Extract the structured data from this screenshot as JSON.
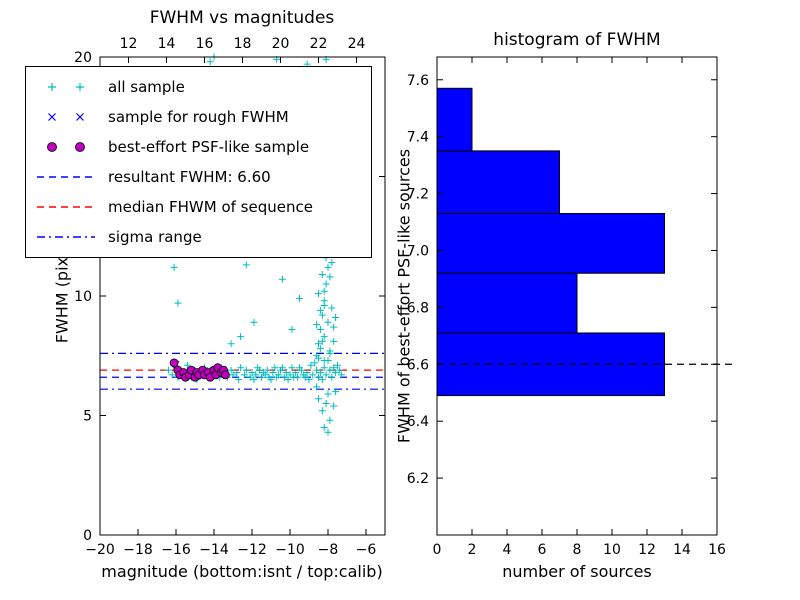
{
  "figure": {
    "background": "#ffffff"
  },
  "chart_data": [
    {
      "type": "scatter",
      "title": "FWHM vs magnitudes",
      "xlabel": "magnitude (bottom:isnt / top:calib)",
      "ylabel": "FWHM (pix)",
      "xlim": [
        -20,
        -5
      ],
      "ylim": [
        0,
        20
      ],
      "x_ticks_bottom": [
        -20,
        -18,
        -16,
        -14,
        -12,
        -10,
        -8,
        -6
      ],
      "x_ticks_top_labels": [
        12,
        14,
        16,
        18,
        20,
        22,
        24
      ],
      "top_axis_calib_offset": 30.5,
      "y_ticks": [
        0,
        5,
        10,
        15,
        20
      ],
      "grid": false,
      "legend_position": "upper-left-outside",
      "series": [
        {
          "name": "all sample",
          "marker": "plus",
          "color": "#00bcbc",
          "points": [
            [
              -16.4,
              6.9
            ],
            [
              -16.2,
              6.7
            ],
            [
              -16.0,
              7.0
            ],
            [
              -15.9,
              6.6
            ],
            [
              -15.7,
              6.8
            ],
            [
              -15.5,
              6.7
            ],
            [
              -15.4,
              7.1
            ],
            [
              -15.2,
              6.6
            ],
            [
              -15.0,
              6.9
            ],
            [
              -14.9,
              6.5
            ],
            [
              -14.8,
              6.8
            ],
            [
              -14.6,
              6.7
            ],
            [
              -14.5,
              7.0
            ],
            [
              -14.3,
              6.6
            ],
            [
              -14.2,
              6.9
            ],
            [
              -14.0,
              6.7
            ],
            [
              -13.9,
              6.8
            ],
            [
              -13.7,
              6.6
            ],
            [
              -13.6,
              7.0
            ],
            [
              -13.4,
              6.8
            ],
            [
              -13.3,
              6.6
            ],
            [
              -13.1,
              6.9
            ],
            [
              -13.0,
              6.7
            ],
            [
              -12.8,
              6.8
            ],
            [
              -12.7,
              6.5
            ],
            [
              -12.6,
              7.0
            ],
            [
              -12.4,
              6.7
            ],
            [
              -12.3,
              6.9
            ],
            [
              -12.1,
              6.6
            ],
            [
              -12.0,
              6.8
            ],
            [
              -11.8,
              6.7
            ],
            [
              -11.7,
              7.0
            ],
            [
              -11.5,
              6.6
            ],
            [
              -11.4,
              6.8
            ],
            [
              -11.2,
              6.9
            ],
            [
              -11.1,
              6.6
            ],
            [
              -10.9,
              6.8
            ],
            [
              -10.8,
              7.0
            ],
            [
              -10.6,
              6.7
            ],
            [
              -10.5,
              6.9
            ],
            [
              -10.3,
              6.6
            ],
            [
              -10.2,
              6.8
            ],
            [
              -10.0,
              6.7
            ],
            [
              -9.9,
              7.0
            ],
            [
              -9.7,
              6.8
            ],
            [
              -9.6,
              6.6
            ],
            [
              -9.4,
              6.9
            ],
            [
              -9.3,
              6.7
            ],
            [
              -9.1,
              6.8
            ],
            [
              -9.0,
              6.5
            ],
            [
              -8.9,
              7.1
            ],
            [
              -8.8,
              6.7
            ],
            [
              -8.6,
              6.9
            ],
            [
              -8.5,
              6.6
            ],
            [
              -8.4,
              6.8
            ],
            [
              -8.2,
              7.0
            ],
            [
              -8.1,
              6.7
            ],
            [
              -7.9,
              6.9
            ],
            [
              -7.8,
              6.6
            ],
            [
              -7.6,
              6.8
            ],
            [
              -7.5,
              7.1
            ],
            [
              -7.3,
              6.7
            ],
            [
              -11.9,
              6.5
            ],
            [
              -11.6,
              6.9
            ],
            [
              -11.3,
              6.7
            ],
            [
              -11.0,
              6.5
            ],
            [
              -10.7,
              6.6
            ],
            [
              -10.4,
              7.0
            ],
            [
              -10.1,
              6.5
            ],
            [
              -9.8,
              6.6
            ],
            [
              -9.5,
              7.0
            ],
            [
              -9.2,
              6.6
            ],
            [
              -8.7,
              7.2
            ],
            [
              -8.3,
              6.5
            ],
            [
              -8.0,
              7.3
            ],
            [
              -7.7,
              7.0
            ],
            [
              -7.4,
              6.9
            ],
            [
              -8.6,
              7.5
            ],
            [
              -8.5,
              8.0
            ],
            [
              -8.4,
              8.6
            ],
            [
              -8.3,
              9.2
            ],
            [
              -8.2,
              9.8
            ],
            [
              -8.1,
              10.5
            ],
            [
              -8.0,
              11.2
            ],
            [
              -7.9,
              12.0
            ],
            [
              -8.3,
              12.6
            ],
            [
              -8.1,
              13.3
            ],
            [
              -8.4,
              7.8
            ],
            [
              -8.2,
              8.3
            ],
            [
              -8.0,
              8.9
            ],
            [
              -7.8,
              9.5
            ],
            [
              -8.5,
              10.1
            ],
            [
              -8.3,
              10.9
            ],
            [
              -8.1,
              11.6
            ],
            [
              -7.9,
              7.6
            ],
            [
              -7.7,
              8.1
            ],
            [
              -8.6,
              8.8
            ],
            [
              -8.4,
              9.4
            ],
            [
              -8.2,
              10.2
            ],
            [
              -8.0,
              5.9
            ],
            [
              -8.1,
              5.5
            ],
            [
              -8.3,
              5.2
            ],
            [
              -7.9,
              4.8
            ],
            [
              -8.2,
              4.5
            ],
            [
              -8.0,
              4.3
            ],
            [
              -8.5,
              5.7
            ],
            [
              -8.6,
              6.2
            ],
            [
              -7.7,
              5.4
            ],
            [
              -7.6,
              6.0
            ],
            [
              -8.0,
              14.2
            ],
            [
              -8.2,
              15.0
            ],
            [
              -8.1,
              16.0
            ],
            [
              -8.3,
              17.1
            ],
            [
              -8.0,
              18.2
            ],
            [
              -8.2,
              19.3
            ],
            [
              -8.1,
              19.9
            ],
            [
              -7.9,
              10.8
            ],
            [
              -7.8,
              11.4
            ],
            [
              -8.6,
              11.9
            ],
            [
              -8.4,
              12.4
            ],
            [
              -8.2,
              7.3
            ],
            [
              -7.9,
              7.7
            ],
            [
              -8.5,
              7.4
            ],
            [
              -8.3,
              8.1
            ],
            [
              -7.7,
              8.7
            ],
            [
              -7.6,
              9.1
            ],
            [
              -8.2,
              9.6
            ],
            [
              -14.2,
              19.8
            ],
            [
              -14.0,
              20.0
            ],
            [
              -10.7,
              19.9
            ],
            [
              -9.1,
              19.7
            ],
            [
              -8.9,
              19.5
            ],
            [
              -16.1,
              11.2
            ],
            [
              -13.6,
              11.9
            ],
            [
              -12.3,
              11.3
            ],
            [
              -15.9,
              9.7
            ],
            [
              -12.6,
              8.3
            ],
            [
              -13.1,
              8.0
            ],
            [
              -11.9,
              8.9
            ],
            [
              -10.4,
              10.7
            ],
            [
              -9.5,
              9.9
            ],
            [
              -9.9,
              8.6
            ]
          ]
        },
        {
          "name": "sample for rough FWHM",
          "marker": "x",
          "color": "#0000ff",
          "points": [
            [
              -16.0,
              7.15
            ],
            [
              -15.7,
              6.75
            ],
            [
              -15.3,
              6.65
            ],
            [
              -14.9,
              6.75
            ],
            [
              -14.4,
              6.7
            ],
            [
              -13.8,
              6.85
            ],
            [
              -13.4,
              6.75
            ]
          ]
        },
        {
          "name": "best-effort PSF-like sample",
          "marker": "circle",
          "color": "#bf00bf",
          "points": [
            [
              -16.1,
              7.2
            ],
            [
              -15.9,
              6.9
            ],
            [
              -15.8,
              6.7
            ],
            [
              -15.6,
              6.8
            ],
            [
              -15.5,
              6.6
            ],
            [
              -15.3,
              6.7
            ],
            [
              -15.2,
              6.9
            ],
            [
              -15.0,
              6.6
            ],
            [
              -14.9,
              6.8
            ],
            [
              -14.8,
              6.7
            ],
            [
              -14.6,
              6.9
            ],
            [
              -14.5,
              6.7
            ],
            [
              -14.3,
              6.8
            ],
            [
              -14.2,
              6.6
            ],
            [
              -14.0,
              6.9
            ],
            [
              -13.9,
              6.7
            ],
            [
              -13.8,
              7.0
            ],
            [
              -13.6,
              6.8
            ],
            [
              -13.5,
              6.9
            ],
            [
              -13.4,
              6.7
            ]
          ]
        }
      ],
      "lines": [
        {
          "name": "sigma range high",
          "value": 7.6,
          "style": "dashdot",
          "color": "#0000ff"
        },
        {
          "name": "median FHWM of sequence",
          "value": 6.9,
          "style": "dashed",
          "color": "#ff0000"
        },
        {
          "name": "resultant FWHM",
          "value": 6.6,
          "style": "dashed",
          "color": "#0000ff"
        },
        {
          "name": "sigma range low",
          "value": 6.1,
          "style": "dashdot",
          "color": "#0000ff"
        }
      ],
      "legend": {
        "entries": [
          {
            "label": "all sample",
            "type": "marker",
            "marker": "plus",
            "color": "#00bcbc"
          },
          {
            "label": "sample for rough FWHM",
            "type": "marker",
            "marker": "x",
            "color": "#0000ff"
          },
          {
            "label": "best-effort PSF-like sample",
            "type": "marker",
            "marker": "circle",
            "color": "#bf00bf"
          },
          {
            "label": "resultant FWHM: 6.60",
            "type": "line",
            "style": "dashed",
            "color": "#0000ff"
          },
          {
            "label": "median FHWM of sequence",
            "type": "line",
            "style": "dashed",
            "color": "#ff0000"
          },
          {
            "label": "sigma range",
            "type": "line",
            "style": "dashdot",
            "color": "#0000ff"
          }
        ]
      }
    },
    {
      "type": "bar",
      "orientation": "horizontal",
      "title": "histogram of FWHM",
      "xlabel": "number of sources",
      "ylabel": "FWHM of best-effort PSF-like sources",
      "xlim": [
        0,
        16
      ],
      "ylim": [
        6.0,
        7.68
      ],
      "x_ticks": [
        0,
        2,
        4,
        6,
        8,
        10,
        12,
        14,
        16
      ],
      "y_ticks": [
        6.2,
        6.4,
        6.6,
        6.8,
        7.0,
        7.2,
        7.4,
        7.6
      ],
      "bin_edges": [
        6.49,
        6.71,
        6.92,
        7.13,
        7.35,
        7.57
      ],
      "counts": [
        13,
        8,
        13,
        7,
        2
      ],
      "bar_color": "#0000ff",
      "bar_edge_color": "#000000",
      "dashed_line": {
        "value": 6.6,
        "style": "dashed",
        "color": "#000000"
      },
      "grid": false
    }
  ]
}
